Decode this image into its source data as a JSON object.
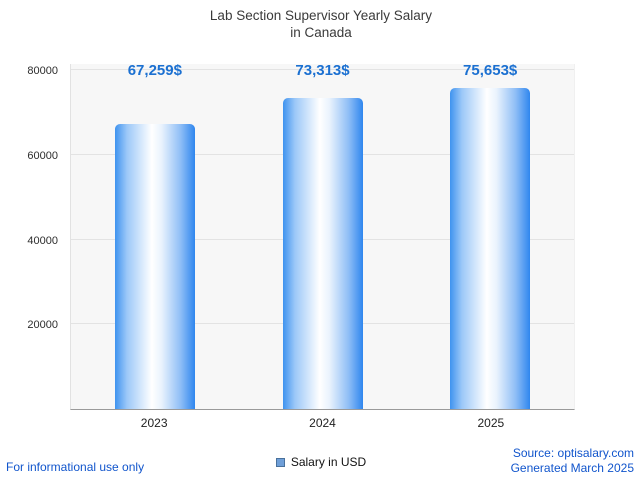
{
  "chart_data": {
    "type": "bar",
    "title": "Lab Section Supervisor Yearly Salary in Canada",
    "title_lines": [
      "Lab Section Supervisor Yearly Salary",
      "in Canada"
    ],
    "categories": [
      "2023",
      "2024",
      "2025"
    ],
    "series": [
      {
        "name": "Salary in USD",
        "values": [
          67259,
          73313,
          75653
        ]
      }
    ],
    "value_labels": [
      "67,259$",
      "73,313$",
      "75,653$"
    ],
    "ylim": [
      0,
      80000
    ],
    "yticks": [
      20000,
      40000,
      60000,
      80000
    ],
    "grid": true,
    "legend_position": "bottom",
    "bar_gradient": [
      "#3f93ef",
      "#ffffff",
      "#2f86ee"
    ],
    "value_label_color": "#1b70d1"
  },
  "legend": {
    "label": "Salary in USD",
    "swatch_color": "#6f9fd8"
  },
  "footer": {
    "left": "For informational use only",
    "source": "Source: optisalary.com",
    "generated": "Generated March 2025"
  }
}
